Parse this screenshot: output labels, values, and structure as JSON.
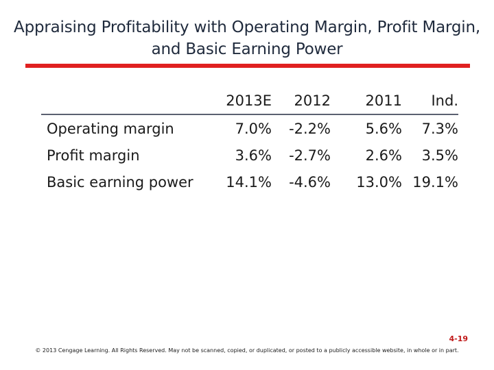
{
  "slide": {
    "title": "Appraising Profitability with Operating Margin, Profit Margin, and Basic Earning Power",
    "page_number": "4-19",
    "copyright": "© 2013 Cengage Learning. All Rights Reserved. May not be scanned, copied, or duplicated, or posted to a publicly accessible website, in whole or in part."
  },
  "table": {
    "headers": [
      "",
      "2013E",
      "2012",
      "2011",
      "Ind."
    ],
    "rows": [
      {
        "label": "Operating margin",
        "values": [
          "7.0%",
          "-2.2%",
          "5.6%",
          "7.3%"
        ]
      },
      {
        "label": "Profit margin",
        "values": [
          "3.6%",
          "-2.7%",
          "2.6%",
          "3.5%"
        ]
      },
      {
        "label": "Basic earning power",
        "values": [
          "14.1%",
          "-4.6%",
          "13.0%",
          "19.1%"
        ]
      }
    ]
  },
  "colors": {
    "title_rule": "#e02020",
    "page_number": "#c01818",
    "title_text": "#1f2a3c"
  }
}
